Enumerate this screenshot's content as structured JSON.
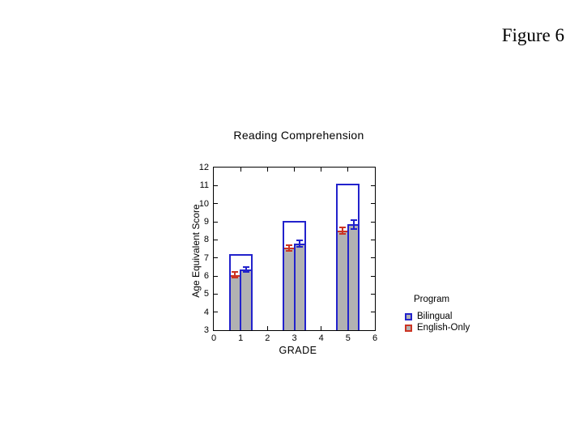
{
  "figure_label": "Figure 6",
  "colors": {
    "background": "#ffffff",
    "axis": "#000000",
    "bar_blue": "#2222cc",
    "bar_red": "#cc3322",
    "bar_gray": "#b2b2b2",
    "outline_bar_fill": "#ffffff"
  },
  "chart_data": {
    "type": "bar",
    "title": "Reading Comprehension",
    "xlabel": "GRADE",
    "ylabel": "Age Equivalent Score",
    "xlim": [
      0,
      6
    ],
    "ylim": [
      3,
      12
    ],
    "x_ticks": [
      0,
      1,
      2,
      3,
      4,
      5,
      6
    ],
    "y_ticks": [
      3,
      4,
      5,
      6,
      7,
      8,
      9,
      10,
      11,
      12
    ],
    "grid": false,
    "categories": [
      1,
      3,
      5
    ],
    "series": [
      {
        "name": "outline-bar",
        "style": "outline",
        "color": "#2222cc",
        "values": [
          7.2,
          9.05,
          11.1
        ]
      },
      {
        "name": "English-Only",
        "style": "filled",
        "color": "#cc3322",
        "values": [
          6.05,
          7.55,
          8.5
        ],
        "errors": [
          0.2,
          0.2,
          0.22
        ]
      },
      {
        "name": "Bilingual",
        "style": "filled",
        "color": "#2222cc",
        "values": [
          6.35,
          7.8,
          8.85
        ],
        "errors": [
          0.18,
          0.22,
          0.3
        ]
      }
    ],
    "legend": {
      "title": "Program",
      "position": "right-bottom",
      "entries": [
        {
          "label": "Bilingual",
          "color": "#2222cc"
        },
        {
          "label": "English-Only",
          "color": "#cc3322"
        }
      ]
    }
  }
}
